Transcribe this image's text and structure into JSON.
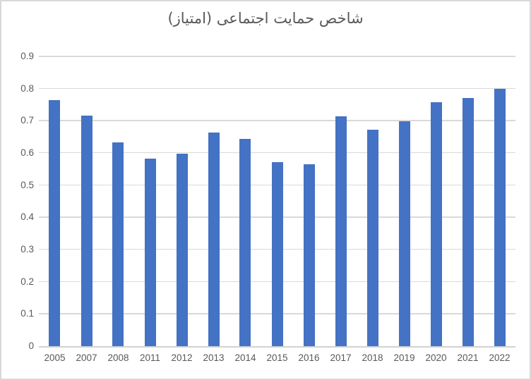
{
  "chart_data": {
    "type": "bar",
    "title": "شاخص حمایت اجتماعی (امتیاز)",
    "xlabel": "",
    "ylabel": "",
    "categories": [
      "2005",
      "2007",
      "2008",
      "2011",
      "2012",
      "2013",
      "2014",
      "2015",
      "2016",
      "2017",
      "2018",
      "2019",
      "2020",
      "2021",
      "2022"
    ],
    "values": [
      0.765,
      0.715,
      0.633,
      0.582,
      0.598,
      0.664,
      0.644,
      0.572,
      0.565,
      0.714,
      0.672,
      0.699,
      0.757,
      0.77,
      0.799
    ],
    "ylim": [
      0,
      0.9
    ],
    "ytick_step": 0.1,
    "ytick_labels": [
      "0",
      "0.1",
      "0.2",
      "0.3",
      "0.4",
      "0.5",
      "0.6",
      "0.7",
      "0.8",
      "0.9"
    ],
    "grid": true,
    "legend": false,
    "colors": {
      "bar": "#4472C4",
      "gridline": "#d9d9d9",
      "axis_line": "#d2d2d2",
      "text": "#595959",
      "frame_border": "#d8d8d8",
      "background": "#ffffff"
    }
  }
}
